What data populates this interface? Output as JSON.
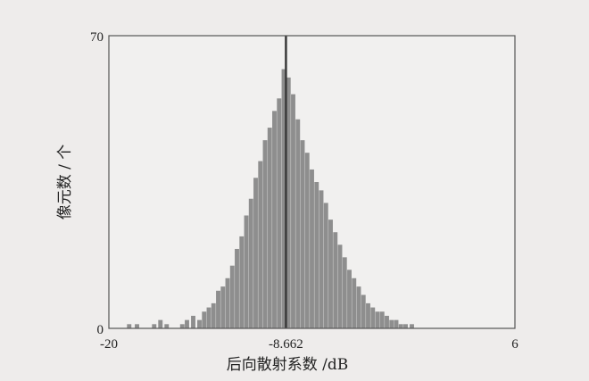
{
  "chart_data": {
    "type": "bar",
    "title": "",
    "xlabel": "后向散射系数 /dB",
    "ylabel": "像元数 / 个",
    "xlim": [
      -20,
      6
    ],
    "ylim": [
      0,
      70
    ],
    "x_ticks": [
      "-20",
      "-8.662",
      "6"
    ],
    "y_ticks": [
      "0",
      "70"
    ],
    "mean_line": {
      "x": -8.662
    },
    "grid": false,
    "colors": {
      "bars": "#8e8e8e",
      "mean_line": "#3a3a3a",
      "frame": "#555555",
      "plot_bg": "#f1f0ef"
    },
    "series": [
      {
        "x": [
          -18.7,
          -18.2,
          -17.7,
          -17.1,
          -16.7,
          -16.3,
          -15.7,
          -15.3,
          -15.0,
          -14.6,
          -14.2,
          -13.9,
          -13.6,
          -13.3,
          -13.0,
          -12.7,
          -12.4,
          -12.1,
          -11.8,
          -11.5,
          -11.2,
          -10.9,
          -10.6,
          -10.3,
          -10.0,
          -9.7,
          -9.4,
          -9.1,
          -8.8,
          -8.5,
          -8.2,
          -7.9,
          -7.6,
          -7.3,
          -7.0,
          -6.7,
          -6.4,
          -6.1,
          -5.8,
          -5.5,
          -5.2,
          -4.9,
          -4.6,
          -4.3,
          -4.0,
          -3.7,
          -3.4,
          -3.1,
          -2.8,
          -2.5,
          -2.2,
          -1.9,
          -1.6,
          -1.3,
          -1.0,
          -0.6
        ],
        "values": [
          1,
          1,
          0,
          1,
          2,
          1,
          0,
          1,
          2,
          3,
          2,
          4,
          5,
          6,
          9,
          10,
          12,
          15,
          19,
          22,
          27,
          31,
          36,
          40,
          45,
          48,
          52,
          55,
          62,
          60,
          56,
          50,
          45,
          42,
          38,
          35,
          33,
          30,
          26,
          23,
          20,
          17,
          14,
          12,
          10,
          8,
          6,
          5,
          4,
          4,
          3,
          2,
          2,
          1,
          1,
          1
        ]
      }
    ]
  }
}
